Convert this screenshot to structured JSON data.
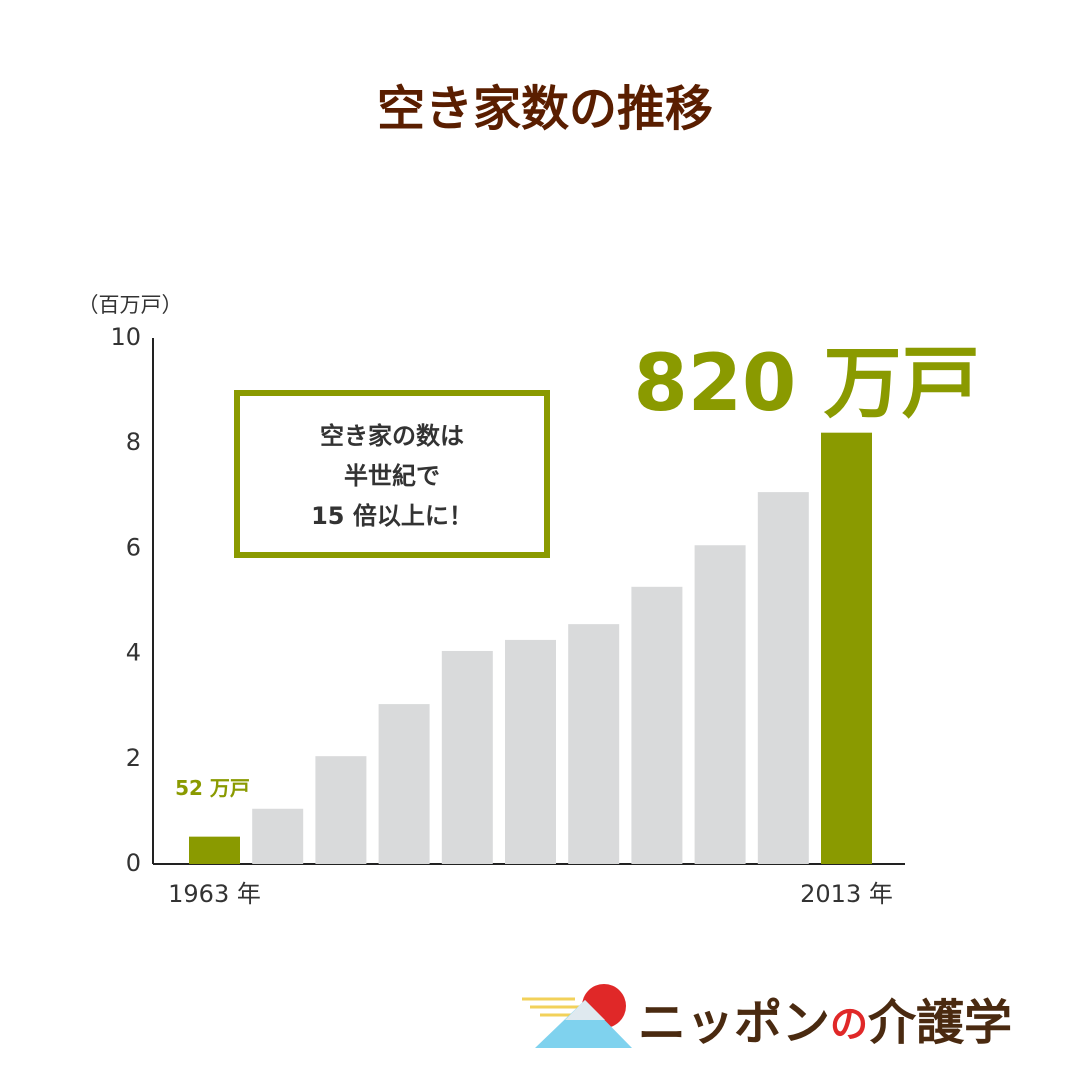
{
  "chart_data": {
    "type": "bar",
    "title": "空き家数の推移",
    "y_label": "（百万戸）",
    "categories": [
      "1963 年",
      null,
      null,
      null,
      null,
      null,
      null,
      null,
      null,
      null,
      "2013 年"
    ],
    "values": [
      0.52,
      1.05,
      2.05,
      3.04,
      4.05,
      4.26,
      4.56,
      5.27,
      6.06,
      7.07,
      8.2
    ],
    "value_labels": [
      "52 万戸",
      null,
      null,
      null,
      null,
      null,
      null,
      null,
      null,
      null,
      "820 万戸"
    ],
    "colors": [
      "#8a9a00",
      "#d9dadb",
      "#d9dadb",
      "#d9dadb",
      "#d9dadb",
      "#d9dadb",
      "#d9dadb",
      "#d9dadb",
      "#d9dadb",
      "#d9dadb",
      "#8a9a00"
    ],
    "ylim": [
      0,
      10
    ],
    "yticks": [
      0,
      2,
      4,
      6,
      8,
      10
    ],
    "annotation": [
      "空き家の数は",
      "半世紀で",
      "15 倍以上に！"
    ]
  },
  "logo": [
    "ニッポン",
    "の",
    "介護学"
  ]
}
